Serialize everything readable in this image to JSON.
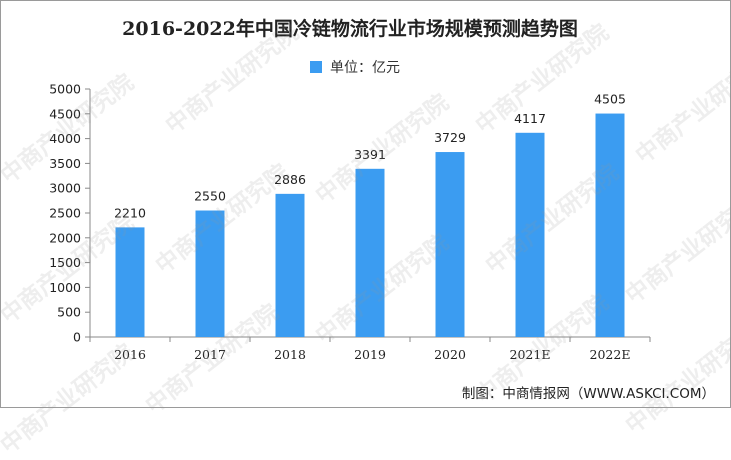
{
  "watermark": "中商产业研究院",
  "source_text": "制图：中商情报网（WWW.ASKCI.COM）",
  "chart_data": {
    "type": "bar",
    "title": "2016-2022年中国冷链物流行业市场规模预测趋势图",
    "categories": [
      "2016",
      "2017",
      "2018",
      "2019",
      "2020",
      "2021E",
      "2022E"
    ],
    "series": [
      {
        "name": "单位：亿元",
        "values": [
          2210,
          2550,
          2886,
          3391,
          3729,
          4117,
          4505
        ]
      }
    ],
    "ylim": [
      0,
      5000
    ],
    "yticks": [
      0,
      500,
      1000,
      1500,
      2000,
      2500,
      3000,
      3500,
      4000,
      4500,
      5000
    ],
    "bar_color": "#3b9cf1",
    "grid": false,
    "legend_position": "top-center",
    "data_labels": true
  }
}
